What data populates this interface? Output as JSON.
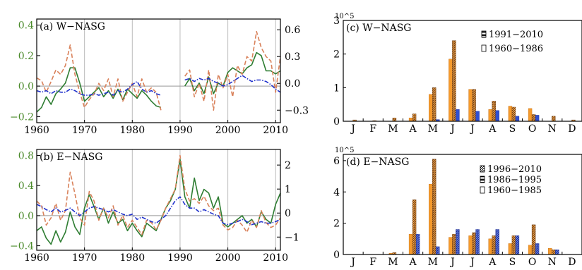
{
  "chart_data": [
    {
      "panel": "a",
      "type": "line",
      "title": "(a) W−NASG",
      "x_ticks": [
        "1960",
        "1970",
        "1980",
        "1990",
        "2000",
        "2010"
      ],
      "xlim": [
        1960,
        2011
      ],
      "left_ylim": [
        -0.24,
        0.44
      ],
      "left_ticks": [
        "0.4",
        "0.2",
        "0.0",
        "−0.2"
      ],
      "right_ylim": [
        -0.44,
        0.72
      ],
      "right_ticks": [
        "0.6",
        "0.3",
        "0.0",
        "−0.3"
      ],
      "colors": {
        "green": "#2e7d32",
        "orange": "#d9825b",
        "blue": "#2233cc",
        "left_axis": "#4a8a2a",
        "right_axis": "#000000"
      },
      "series": [
        {
          "style": "green-solid",
          "axis": "left",
          "x": [
            1960,
            1961,
            1962,
            1963,
            1964,
            1965,
            1966,
            1967,
            1968,
            1969,
            1970,
            1971,
            1972,
            1973,
            1974,
            1975,
            1976,
            1977,
            1978,
            1979,
            1980,
            1981,
            1982,
            1983,
            1984,
            1985,
            1986,
            null,
            1991,
            1992,
            1993,
            1994,
            1995,
            1996,
            1997,
            1998,
            1999,
            2000,
            2001,
            2002,
            2003,
            2004,
            2005,
            2006,
            2007,
            2008,
            2009,
            2010,
            2011
          ],
          "y": [
            -0.17,
            -0.14,
            -0.07,
            -0.12,
            -0.05,
            -0.02,
            0.02,
            0.12,
            0.12,
            0.02,
            -0.1,
            -0.07,
            -0.04,
            -0.01,
            -0.07,
            -0.03,
            -0.08,
            -0.02,
            -0.09,
            -0.02,
            -0.05,
            -0.08,
            -0.03,
            -0.06,
            -0.1,
            -0.13,
            -0.14,
            null,
            0.0,
            0.05,
            -0.03,
            0.02,
            -0.05,
            0.06,
            -0.05,
            0.02,
            0.0,
            0.09,
            0.12,
            0.1,
            0.08,
            0.12,
            0.14,
            0.22,
            0.2,
            0.1,
            0.1,
            0.08,
            0.1
          ]
        },
        {
          "style": "orange-dashed",
          "axis": "right",
          "x": [
            1960,
            1961,
            1962,
            1963,
            1964,
            1965,
            1966,
            1967,
            1968,
            1969,
            1970,
            1971,
            1972,
            1973,
            1974,
            1975,
            1976,
            1977,
            1978,
            1979,
            1980,
            1981,
            1982,
            1983,
            1984,
            1985,
            1986,
            null,
            1991,
            1992,
            1993,
            1994,
            1995,
            1996,
            1997,
            1998,
            1999,
            2000,
            2001,
            2002,
            2003,
            2004,
            2005,
            2006,
            2007,
            2008,
            2009,
            2010,
            2011
          ],
          "y": [
            0.06,
            0.03,
            -0.1,
            0.02,
            0.15,
            0.1,
            0.2,
            0.43,
            0.1,
            -0.1,
            -0.27,
            -0.18,
            -0.12,
            0.0,
            -0.08,
            0.05,
            -0.15,
            0.05,
            -0.2,
            -0.1,
            0.0,
            -0.15,
            0.05,
            -0.1,
            -0.05,
            -0.1,
            -0.3,
            null,
            0.08,
            0.15,
            -0.15,
            0.0,
            -0.2,
            0.15,
            -0.3,
            0.1,
            -0.05,
            0.1,
            -0.15,
            0.2,
            0.1,
            0.3,
            0.25,
            0.58,
            0.4,
            0.3,
            0.25,
            -0.1,
            0.3
          ]
        },
        {
          "style": "blue-dashdot",
          "axis": "left",
          "x": [
            1960,
            1961,
            1962,
            1963,
            1964,
            1965,
            1966,
            1967,
            1968,
            1969,
            1970,
            1971,
            1972,
            1973,
            1974,
            1975,
            1976,
            1977,
            1978,
            1979,
            1980,
            1981,
            1982,
            1983,
            1984,
            1985,
            1986,
            null,
            1991,
            1992,
            1993,
            1994,
            1995,
            1996,
            1997,
            1998,
            1999,
            2000,
            2001,
            2002,
            2003,
            2004,
            2005,
            2006,
            2007,
            2008,
            2009,
            2010,
            2011
          ],
          "y": [
            -0.03,
            -0.04,
            -0.03,
            -0.05,
            -0.03,
            -0.04,
            -0.04,
            -0.02,
            -0.03,
            -0.05,
            -0.06,
            -0.06,
            -0.05,
            -0.06,
            -0.05,
            -0.04,
            -0.06,
            -0.03,
            -0.04,
            -0.02,
            0.01,
            0.03,
            -0.02,
            -0.04,
            -0.03,
            -0.05,
            -0.06,
            null,
            0.04,
            0.05,
            0.03,
            0.05,
            0.04,
            0.05,
            0.03,
            0.02,
            0.0,
            0.01,
            0.03,
            0.05,
            0.07,
            0.05,
            0.03,
            0.04,
            0.04,
            0.03,
            0.01,
            -0.02,
            -0.04
          ]
        }
      ]
    },
    {
      "panel": "b",
      "type": "line",
      "title": "(b) E−NASG",
      "x_ticks": [
        "1960",
        "1970",
        "1980",
        "1990",
        "2000",
        "2010"
      ],
      "xlim": [
        1960,
        2011
      ],
      "left_ylim": [
        -0.46,
        0.88
      ],
      "left_ticks": [
        "0.8",
        "0.4",
        "0.0",
        "−0.4"
      ],
      "right_ylim": [
        -1.55,
        2.65
      ],
      "right_ticks": [
        "2",
        "1",
        "0",
        "−1"
      ],
      "colors": {
        "green": "#2e7d32",
        "orange": "#d9825b",
        "blue": "#2233cc",
        "left_axis": "#4a8a2a",
        "right_axis": "#000000"
      },
      "series": [
        {
          "style": "green-solid",
          "axis": "left",
          "x": [
            1960,
            1961,
            1962,
            1963,
            1964,
            1965,
            1966,
            1967,
            1968,
            1969,
            1970,
            1971,
            1972,
            1973,
            1974,
            1975,
            1976,
            1977,
            1978,
            1979,
            1980,
            1981,
            1982,
            1983,
            1984,
            1985,
            1986,
            1987,
            1988,
            1989,
            1990,
            1991,
            1992,
            1993,
            1994,
            1995,
            1996,
            1997,
            1998,
            1999,
            2000,
            2001,
            2002,
            2003,
            2004,
            2005,
            2006,
            2007,
            2008,
            2009,
            2010,
            2011
          ],
          "y": [
            -0.2,
            -0.15,
            -0.3,
            -0.38,
            -0.2,
            -0.35,
            -0.22,
            0.05,
            -0.15,
            -0.25,
            0.1,
            0.28,
            0.12,
            -0.05,
            0.1,
            -0.1,
            0.05,
            -0.1,
            -0.05,
            -0.2,
            -0.1,
            -0.2,
            -0.28,
            -0.1,
            -0.15,
            -0.2,
            -0.05,
            0.1,
            0.2,
            0.35,
            0.75,
            0.25,
            0.1,
            0.5,
            0.2,
            0.35,
            0.3,
            0.1,
            0.25,
            -0.1,
            -0.15,
            -0.1,
            -0.05,
            0.0,
            -0.1,
            -0.05,
            -0.15,
            0.05,
            -0.05,
            -0.1,
            0.15,
            0.3
          ]
        },
        {
          "style": "orange-dashed",
          "axis": "right",
          "x": [
            1960,
            1961,
            1962,
            1963,
            1964,
            1965,
            1966,
            1967,
            1968,
            1969,
            1970,
            1971,
            1972,
            1973,
            1974,
            1975,
            1976,
            1977,
            1978,
            1979,
            1980,
            1981,
            1982,
            1983,
            1984,
            1985,
            1986,
            1987,
            1988,
            1989,
            1990,
            1991,
            1992,
            1993,
            1994,
            1995,
            1996,
            1997,
            1998,
            1999,
            2000,
            2001,
            2002,
            2003,
            2004,
            2005,
            2006,
            2007,
            2008,
            2009,
            2010,
            2011
          ],
          "y": [
            0.5,
            0.3,
            -0.5,
            -0.2,
            0.4,
            -0.3,
            0.1,
            1.7,
            0.8,
            -0.2,
            -0.5,
            0.9,
            0.5,
            -0.3,
            0.2,
            -0.2,
            0.3,
            -0.5,
            -0.1,
            -0.6,
            -0.3,
            -0.6,
            -0.9,
            -0.3,
            -0.4,
            -0.7,
            -0.3,
            0.2,
            0.6,
            1.0,
            2.4,
            1.0,
            0.5,
            0.6,
            0.4,
            0.7,
            0.3,
            0.1,
            0.2,
            -0.5,
            -0.7,
            -0.6,
            -0.3,
            -0.5,
            -0.8,
            -0.3,
            -0.6,
            0.1,
            -0.4,
            -0.6,
            -0.5,
            -0.2
          ]
        },
        {
          "style": "blue-dashdot",
          "axis": "left",
          "x": [
            1960,
            1961,
            1962,
            1963,
            1964,
            1965,
            1966,
            1967,
            1968,
            1969,
            1970,
            1971,
            1972,
            1973,
            1974,
            1975,
            1976,
            1977,
            1978,
            1979,
            1980,
            1981,
            1982,
            1983,
            1984,
            1985,
            1986,
            1987,
            1988,
            1989,
            1990,
            1991,
            1992,
            1993,
            1994,
            1995,
            1996,
            1997,
            1998,
            1999,
            2000,
            2001,
            2002,
            2003,
            2004,
            2005,
            2006,
            2007,
            2008,
            2009,
            2010,
            2011
          ],
          "y": [
            0.15,
            0.12,
            0.08,
            0.05,
            0.1,
            0.05,
            0.07,
            0.1,
            0.05,
            0.0,
            0.05,
            0.1,
            0.12,
            0.1,
            0.08,
            0.05,
            0.08,
            0.05,
            0.02,
            0.0,
            0.02,
            -0.05,
            -0.02,
            -0.05,
            -0.08,
            -0.1,
            -0.05,
            0.0,
            0.1,
            0.2,
            0.25,
            0.15,
            0.1,
            0.1,
            0.05,
            0.08,
            0.05,
            0.02,
            0.0,
            -0.1,
            -0.12,
            -0.1,
            -0.08,
            -0.05,
            -0.08,
            -0.12,
            -0.1,
            -0.08,
            -0.1,
            -0.1,
            -0.08,
            -0.05
          ]
        }
      ]
    },
    {
      "panel": "c",
      "type": "bar",
      "title": "(c) W−NASG",
      "scale_label": "10^5",
      "categories": [
        "J",
        "F",
        "M",
        "A",
        "M",
        "J",
        "J",
        "A",
        "S",
        "O",
        "N",
        "D"
      ],
      "ylim": [
        0,
        3
      ],
      "y_ticks": [
        "3",
        "2",
        "1",
        "0"
      ],
      "colors": {
        "orange": "#f59a2c",
        "hatched": "#b56a2a",
        "blue": "#3050d0"
      },
      "legend": [
        "1991−2010",
        "1960−1986"
      ],
      "series": [
        {
          "legend_index": 1,
          "style": "orange-solid",
          "values": [
            0.0,
            0.0,
            0.0,
            0.1,
            0.8,
            1.85,
            0.95,
            0.35,
            0.45,
            0.38,
            0.0,
            0.0
          ]
        },
        {
          "legend_index": 0,
          "style": "brown-hatched",
          "values": [
            0.04,
            0.02,
            0.1,
            0.22,
            1.0,
            2.4,
            0.95,
            0.6,
            0.42,
            0.2,
            0.15,
            0.04
          ]
        },
        {
          "style": "blue-solid",
          "values": [
            0.0,
            0.0,
            0.0,
            0.0,
            0.05,
            0.35,
            0.3,
            0.32,
            0.15,
            0.18,
            0.0,
            0.0
          ]
        }
      ]
    },
    {
      "panel": "d",
      "type": "bar",
      "title": "(d) E−NASG",
      "scale_label": "10^5",
      "categories": [
        "J",
        "F",
        "M",
        "A",
        "M",
        "J",
        "J",
        "A",
        "S",
        "O",
        "N",
        "D"
      ],
      "ylim": [
        0,
        6.4
      ],
      "y_ticks": [
        "6",
        "4",
        "2",
        "0"
      ],
      "colors": {
        "orange": "#f59a2c",
        "hatched": "#b56a2a",
        "blue": "#3050d0"
      },
      "legend": [
        "1996−2010",
        "1986−1995",
        "1960−1985"
      ],
      "series": [
        {
          "legend_index": 2,
          "style": "orange-solid",
          "values": [
            0.0,
            0.0,
            0.08,
            1.3,
            4.5,
            1.1,
            1.2,
            1.0,
            0.7,
            0.6,
            0.4,
            0.0
          ]
        },
        {
          "legend_index": 1,
          "style": "brown-hatched",
          "values": [
            0.0,
            0.0,
            0.12,
            3.5,
            6.1,
            1.3,
            1.4,
            1.2,
            1.2,
            1.9,
            0.3,
            0.0
          ]
        },
        {
          "legend_index": 0,
          "style": "blue-hatched",
          "values": [
            0.0,
            0.0,
            0.0,
            1.3,
            0.5,
            1.6,
            1.6,
            1.6,
            1.2,
            0.7,
            0.3,
            0.0
          ]
        }
      ]
    }
  ]
}
